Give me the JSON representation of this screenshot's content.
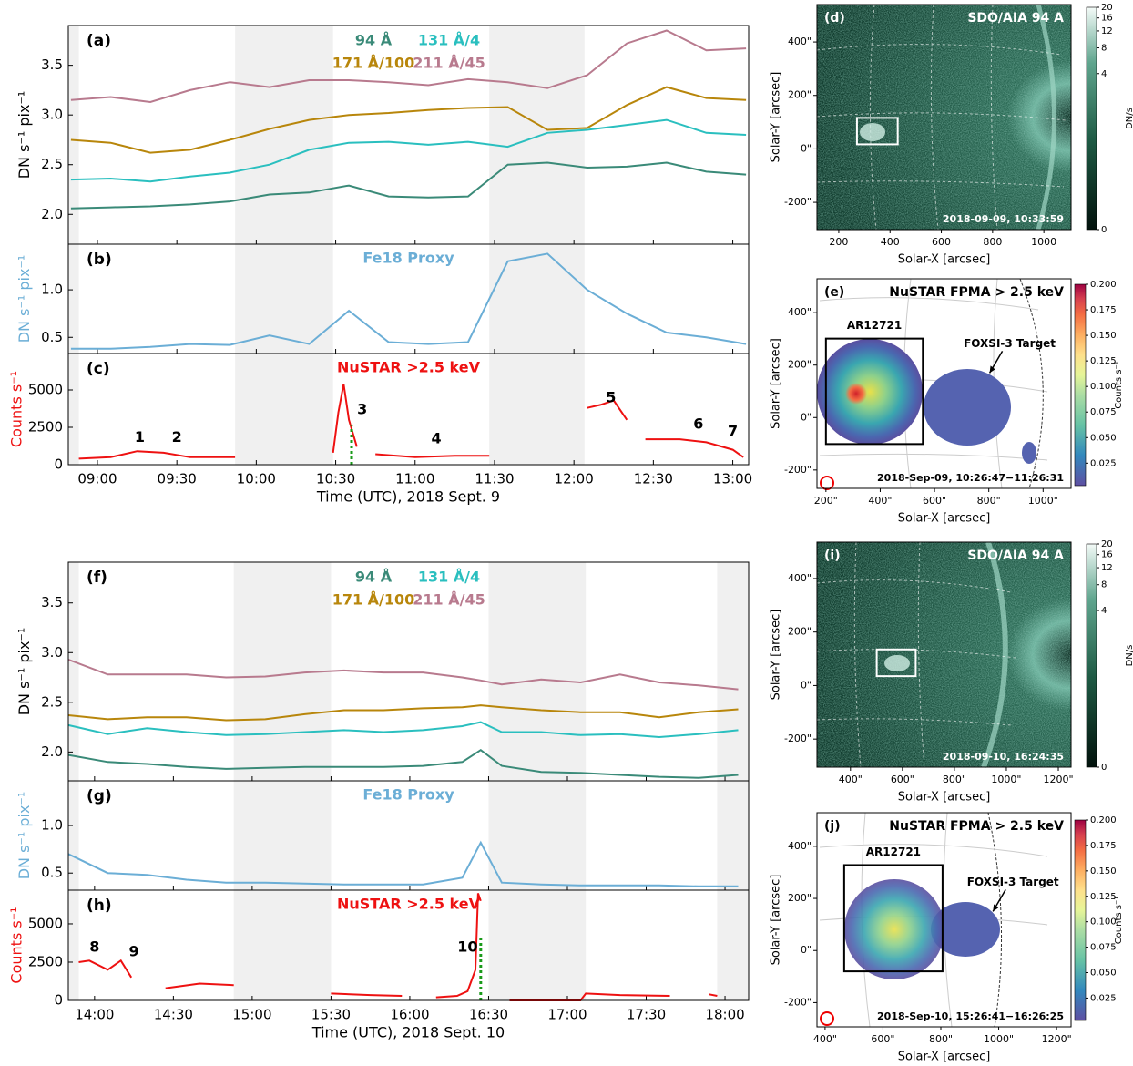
{
  "chart_data": [
    {
      "type": "line",
      "label": "(a)",
      "ylabel": "DN s⁻¹ pix⁻¹",
      "xlim": [
        "08:49",
        "13:06"
      ],
      "ylim": [
        1.7,
        3.9
      ],
      "yticks": [
        {
          "value": 2,
          "label": "2.0"
        },
        2.5,
        {
          "value": 3,
          "label": "3.0"
        },
        3.5
      ],
      "x": [
        "08:50",
        "09:05",
        "09:20",
        "09:35",
        "09:50",
        "10:05",
        "10:20",
        "10:35",
        "10:50",
        "11:05",
        "11:20",
        "11:35",
        "11:50",
        "12:05",
        "12:20",
        "12:35",
        "12:50",
        "13:05"
      ],
      "series": [
        {
          "name": "94 Å",
          "color": "#3a8a78",
          "values": [
            2.06,
            2.07,
            2.08,
            2.1,
            2.13,
            2.2,
            2.22,
            2.29,
            2.18,
            2.17,
            2.18,
            2.5,
            2.52,
            2.47,
            2.48,
            2.52,
            2.43,
            2.4
          ]
        },
        {
          "name": "131 Å/4",
          "color": "#2abfbf",
          "values": [
            2.35,
            2.36,
            2.33,
            2.38,
            2.42,
            2.5,
            2.65,
            2.72,
            2.73,
            2.7,
            2.73,
            2.68,
            2.82,
            2.85,
            2.9,
            2.95,
            2.82,
            2.8
          ]
        },
        {
          "name": "171 Å/100",
          "color": "#b8860b",
          "values": [
            2.75,
            2.72,
            2.62,
            2.65,
            2.75,
            2.86,
            2.95,
            3.0,
            3.02,
            3.05,
            3.07,
            3.08,
            2.85,
            2.87,
            3.1,
            3.28,
            3.17,
            3.15
          ]
        },
        {
          "name": "211 Å/45",
          "color": "#b87a8e",
          "values": [
            3.15,
            3.18,
            3.13,
            3.25,
            3.33,
            3.28,
            3.35,
            3.35,
            3.33,
            3.3,
            3.36,
            3.33,
            3.27,
            3.4,
            3.72,
            3.85,
            3.65,
            3.67
          ]
        }
      ]
    },
    {
      "type": "line",
      "label": "(b)",
      "ylabel": "DN s⁻¹ pix⁻¹",
      "xlim": [
        "08:49",
        "13:06"
      ],
      "ylim": [
        0.33,
        1.48
      ],
      "yticks": [
        0.5,
        {
          "value": 1,
          "label": "1.0"
        }
      ],
      "x": [
        "08:50",
        "09:05",
        "09:20",
        "09:35",
        "09:50",
        "10:05",
        "10:20",
        "10:35",
        "10:50",
        "11:05",
        "11:20",
        "11:35",
        "11:50",
        "12:05",
        "12:20",
        "12:35",
        "12:50",
        "13:05"
      ],
      "series": [
        {
          "name": "Fe18 Proxy",
          "color": "#6baed6",
          "values": [
            0.38,
            0.38,
            0.4,
            0.43,
            0.42,
            0.52,
            0.43,
            0.78,
            0.45,
            0.43,
            0.45,
            1.3,
            1.38,
            1.0,
            0.75,
            0.55,
            0.5,
            0.43
          ]
        }
      ]
    },
    {
      "type": "line",
      "label": "(c)",
      "ylabel": "Counts s⁻¹",
      "xlabel": "Time (UTC), 2018 Sept. 9",
      "xlim": [
        "08:49",
        "13:06"
      ],
      "ylim": [
        0,
        7440
      ],
      "yticks": [
        0,
        2500,
        5000
      ],
      "xticks": [
        "09:00",
        "09:30",
        "10:00",
        "10:30",
        "11:00",
        "11:30",
        "12:00",
        "12:30",
        "13:00"
      ],
      "shaded": [
        [
          "08:49",
          "08:53"
        ],
        [
          "09:52",
          "10:29"
        ],
        [
          "11:28",
          "12:04"
        ]
      ],
      "x": [
        "08:53",
        "09:05",
        "09:15",
        "09:25",
        "09:35",
        "09:52",
        "10:00",
        "10:29",
        "10:31",
        "10:33",
        "10:35",
        "10:38",
        "10:42",
        "10:45",
        "11:00",
        "11:15",
        "11:28",
        "11:50",
        "12:05",
        "12:10",
        "12:15",
        "12:20",
        "12:24",
        "12:27",
        "12:40",
        "12:50",
        "13:00",
        "13:04"
      ],
      "series": [
        {
          "name": "NuSTAR >2.5 keV",
          "color": "#ee1111",
          "values": [
            400,
            500,
            900,
            800,
            500,
            500,
            null,
            800,
            3500,
            5400,
            3000,
            1200,
            null,
            700,
            500,
            600,
            600,
            null,
            3800,
            4000,
            4300,
            3000,
            null,
            1700,
            1700,
            1500,
            1000,
            500
          ]
        }
      ],
      "annotations": [
        {
          "text": "1",
          "x": "09:16",
          "y": 1800
        },
        {
          "text": "2",
          "x": "09:30",
          "y": 1800
        },
        {
          "text": "3",
          "x": "10:40",
          "y": 3660
        },
        {
          "text": "4",
          "x": "11:08",
          "y": 1700
        },
        {
          "text": "5",
          "x": "12:14",
          "y": 4450
        },
        {
          "text": "6",
          "x": "12:47",
          "y": 2680
        },
        {
          "text": "7",
          "x": "13:00",
          "y": 2200
        }
      ],
      "event_line": {
        "x": "10:36",
        "ymax": 2600,
        "color": "#1a9a1a"
      }
    },
    {
      "type": "image",
      "label": "(d)",
      "title": "SDO/AIA 94 A",
      "timestamp": "2018-09-09, 10:33:59",
      "xlabel": "Solar-X [arcsec]",
      "ylabel": "Solar-Y [arcsec]",
      "text_color": "#ffffff",
      "xlim": [
        115,
        1106
      ],
      "ylim": [
        -302,
        540
      ],
      "xticks": [
        200,
        400,
        600,
        800,
        1000
      ],
      "yticks": [
        {
          "value": -200,
          "label": "-200\""
        },
        {
          "value": 0,
          "label": "0\""
        },
        {
          "value": 200,
          "label": "200\""
        },
        {
          "value": 400,
          "label": "400\""
        }
      ],
      "box": {
        "x": [
          271,
          430
        ],
        "y": [
          17,
          116
        ]
      },
      "colorbar": {
        "label": "DN/s",
        "lim": [
          0,
          20
        ],
        "power": 0.22,
        "ticks": [
          0,
          4,
          8,
          12,
          16,
          20
        ]
      }
    },
    {
      "type": "image",
      "label": "(e)",
      "title": "NuSTAR FPMA  > 2.5 keV",
      "timestamp": "2018-Sep-09, 10:26:47−11:26:31",
      "xlabel": "Solar-X [arcsec]",
      "ylabel": "Solar-Y [arcsec]",
      "text_color": "#000000",
      "xlim": [
        167,
        1103
      ],
      "ylim": [
        -270,
        529
      ],
      "xticks": [
        {
          "value": 200,
          "label": "200\""
        },
        {
          "value": 400,
          "label": "400\""
        },
        {
          "value": 600,
          "label": "600\""
        },
        {
          "value": 800,
          "label": "800\""
        },
        {
          "value": 1000,
          "label": "1000\""
        }
      ],
      "yticks": [
        {
          "value": -200,
          "label": "-200\""
        },
        {
          "value": 0,
          "label": "0\""
        },
        {
          "value": 200,
          "label": "200\""
        },
        {
          "value": 400,
          "label": "400\""
        }
      ],
      "box": {
        "x": [
          200,
          557
        ],
        "y": [
          -101,
          301
        ],
        "label": "AR12721"
      },
      "annotations": [
        {
          "text": "FOXSI-3 Target",
          "x": 803,
          "y": 170
        }
      ],
      "colorbar": {
        "label": "Counts s⁻¹",
        "lim": [
          0.003,
          0.2
        ],
        "ticks": [
          0.025,
          {
            "value": 0.05,
            "label": "0.050"
          },
          0.075,
          {
            "value": 0.1,
            "label": "0.100"
          },
          0.125,
          {
            "value": 0.15,
            "label": "0.150"
          },
          0.175,
          {
            "value": 0.2,
            "label": "0.200"
          }
        ]
      }
    },
    {
      "type": "line",
      "label": "(f)",
      "ylabel": "DN s⁻¹ pix⁻¹",
      "xlim": [
        "13:50",
        "18:09"
      ],
      "ylim": [
        1.71,
        3.91
      ],
      "yticks": [
        {
          "value": 2,
          "label": "2.0"
        },
        2.5,
        {
          "value": 3,
          "label": "3.0"
        },
        3.5
      ],
      "x": [
        "13:50",
        "14:05",
        "14:20",
        "14:35",
        "14:50",
        "15:05",
        "15:20",
        "15:35",
        "15:50",
        "16:05",
        "16:20",
        "16:27",
        "16:35",
        "16:50",
        "17:05",
        "17:20",
        "17:35",
        "17:50",
        "18:05"
      ],
      "series": [
        {
          "name": "94 Å",
          "color": "#3a8a78",
          "values": [
            1.97,
            1.9,
            1.88,
            1.85,
            1.83,
            1.84,
            1.85,
            1.85,
            1.85,
            1.86,
            1.9,
            2.02,
            1.86,
            1.8,
            1.79,
            1.77,
            1.75,
            1.74,
            1.77
          ]
        },
        {
          "name": "131 Å/4",
          "color": "#2abfbf",
          "values": [
            2.27,
            2.18,
            2.24,
            2.2,
            2.17,
            2.18,
            2.2,
            2.22,
            2.2,
            2.22,
            2.26,
            2.3,
            2.2,
            2.2,
            2.17,
            2.18,
            2.15,
            2.18,
            2.22
          ]
        },
        {
          "name": "171 Å/100",
          "color": "#b8860b",
          "values": [
            2.37,
            2.33,
            2.35,
            2.35,
            2.32,
            2.33,
            2.38,
            2.42,
            2.42,
            2.44,
            2.45,
            2.47,
            2.45,
            2.42,
            2.4,
            2.4,
            2.35,
            2.4,
            2.43
          ]
        },
        {
          "name": "211 Å/45",
          "color": "#b87a8e",
          "values": [
            2.93,
            2.78,
            2.78,
            2.78,
            2.75,
            2.76,
            2.8,
            2.82,
            2.8,
            2.8,
            2.75,
            2.72,
            2.68,
            2.73,
            2.7,
            2.78,
            2.7,
            2.67,
            2.63
          ]
        }
      ]
    },
    {
      "type": "line",
      "label": "(g)",
      "ylabel": "DN s⁻¹ pix⁻¹",
      "xlim": [
        "13:50",
        "18:09"
      ],
      "ylim": [
        0.32,
        1.47
      ],
      "yticks": [
        0.5,
        {
          "value": 1,
          "label": "1.0"
        }
      ],
      "x": [
        "13:50",
        "14:05",
        "14:20",
        "14:35",
        "14:50",
        "15:05",
        "15:20",
        "15:35",
        "15:50",
        "16:05",
        "16:20",
        "16:27",
        "16:35",
        "16:50",
        "17:05",
        "17:20",
        "17:35",
        "17:50",
        "18:05"
      ],
      "series": [
        {
          "name": "Fe18 Proxy",
          "color": "#6baed6",
          "values": [
            0.7,
            0.5,
            0.48,
            0.43,
            0.4,
            0.4,
            0.39,
            0.38,
            0.38,
            0.38,
            0.45,
            0.82,
            0.4,
            0.38,
            0.37,
            0.37,
            0.37,
            0.36,
            0.36
          ]
        }
      ]
    },
    {
      "type": "line",
      "label": "(h)",
      "ylabel": "Counts s⁻¹",
      "xlabel": "Time (UTC), 2018 Sept. 10",
      "xlim": [
        "13:50",
        "18:09"
      ],
      "ylim": [
        0,
        7200
      ],
      "yticks": [
        0,
        2500,
        5000
      ],
      "xticks": [
        "14:00",
        "14:30",
        "15:00",
        "15:30",
        "16:00",
        "16:30",
        "17:00",
        "17:30",
        "18:00"
      ],
      "shaded": [
        [
          "13:50",
          "13:54"
        ],
        [
          "14:53",
          "15:30"
        ],
        [
          "16:30",
          "17:07"
        ],
        [
          "17:57",
          "18:09"
        ]
      ],
      "x": [
        "13:54",
        "13:58",
        "14:05",
        "14:10",
        "14:14",
        "14:18",
        "14:27",
        "14:40",
        "14:53",
        "15:10",
        "15:30",
        "15:45",
        "15:57",
        "16:00",
        "16:10",
        "16:18",
        "16:22",
        "16:25",
        "16:26",
        "16:27",
        "16:30",
        "16:38",
        "16:50",
        "17:05",
        "17:07",
        "17:20",
        "17:39",
        "17:45",
        "17:54",
        "17:57"
      ],
      "series": [
        {
          "name": "NuSTAR >2.5 keV",
          "color": "#ee1111",
          "values": [
            2500,
            2600,
            2000,
            2600,
            1500,
            null,
            800,
            1100,
            1000,
            null,
            450,
            350,
            300,
            null,
            200,
            300,
            600,
            2000,
            7000,
            6500,
            null,
            0,
            0,
            0,
            450,
            350,
            300,
            null,
            400,
            300
          ]
        }
      ],
      "annotations": [
        {
          "text": "8",
          "x": "14:00",
          "y": 3450
        },
        {
          "text": "9",
          "x": "14:15",
          "y": 3150
        },
        {
          "text": "10",
          "x": "16:22",
          "y": 3450
        }
      ],
      "event_line": {
        "x": "16:27",
        "ymax": 4200,
        "color": "#1a9a1a"
      }
    },
    {
      "type": "image",
      "label": "(i)",
      "title": "SDO/AIA 94 A",
      "timestamp": "2018-09-10, 16:24:35",
      "xlabel": "Solar-X [arcsec]",
      "ylabel": "Solar-Y [arcsec]",
      "text_color": "#ffffff",
      "xlim": [
        271,
        1249
      ],
      "ylim": [
        -305,
        536
      ],
      "xticks": [
        {
          "value": 400,
          "label": "400\""
        },
        {
          "value": 600,
          "label": "600\""
        },
        {
          "value": 800,
          "label": "800\""
        },
        {
          "value": 1000,
          "label": "1000\""
        },
        {
          "value": 1200,
          "label": "1200\""
        }
      ],
      "yticks": [
        {
          "value": -200,
          "label": "-200\""
        },
        {
          "value": 0,
          "label": "0\""
        },
        {
          "value": 200,
          "label": "200\""
        },
        {
          "value": 400,
          "label": "400\""
        }
      ],
      "box": {
        "x": [
          501,
          651
        ],
        "y": [
          35,
          135
        ]
      },
      "colorbar": {
        "label": "DN/s",
        "lim": [
          0,
          20
        ],
        "power": 0.22,
        "ticks": [
          0,
          4,
          8,
          12,
          16,
          20
        ]
      }
    },
    {
      "type": "image",
      "label": "(j)",
      "title": "NuSTAR FPMA  > 2.5 keV",
      "timestamp": "2018-Sep-10, 15:26:41−16:26:25",
      "xlabel": "Solar-X [arcsec]",
      "ylabel": "Solar-Y [arcsec]",
      "text_color": "#000000",
      "xlim": [
        372,
        1250
      ],
      "ylim": [
        -293,
        529
      ],
      "xticks": [
        {
          "value": 400,
          "label": "400\""
        },
        {
          "value": 600,
          "label": "600\""
        },
        {
          "value": 800,
          "label": "800\""
        },
        {
          "value": 1000,
          "label": "1000\""
        },
        {
          "value": 1200,
          "label": "1200\""
        }
      ],
      "yticks": [
        {
          "value": -200,
          "label": "-200\""
        },
        {
          "value": 0,
          "label": "0\""
        },
        {
          "value": 200,
          "label": "200\""
        },
        {
          "value": 400,
          "label": "400\""
        }
      ],
      "box": {
        "x": [
          466,
          806
        ],
        "y": [
          -80,
          328
        ],
        "label": "AR12721"
      },
      "annotations": [
        {
          "text": "FOXSI-3 Target",
          "x": 980,
          "y": 150
        }
      ],
      "colorbar": {
        "label": "Counts s⁻¹",
        "lim": [
          0.003,
          0.2
        ],
        "ticks": [
          0.025,
          {
            "value": 0.05,
            "label": "0.050"
          },
          0.075,
          {
            "value": 0.1,
            "label": "0.100"
          },
          0.125,
          {
            "value": 0.15,
            "label": "0.150"
          },
          0.175,
          {
            "value": 0.2,
            "label": "0.200"
          }
        ]
      }
    }
  ]
}
